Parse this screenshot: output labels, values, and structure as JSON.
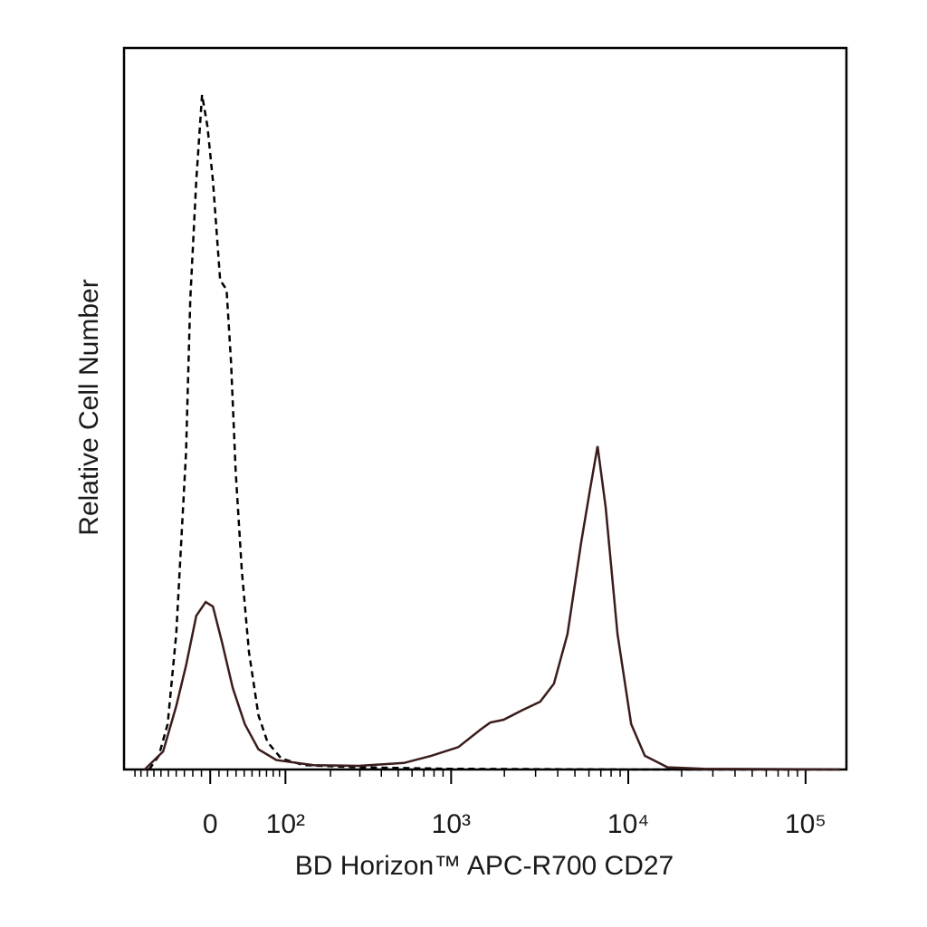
{
  "chart_data": {
    "type": "line",
    "xlabel": "BD Horizon™ APC-R700 CD27",
    "ylabel": "Relative Cell Number",
    "xscale": "biexponential",
    "xlim": [
      -120,
      170000
    ],
    "ylim": [
      0,
      100
    ],
    "xticks": [
      0,
      {
        "value": 100,
        "label": "10²"
      },
      {
        "value": 1000,
        "label": "10³"
      },
      {
        "value": 10000,
        "label": "10⁴"
      },
      {
        "value": 100000,
        "label": "10⁵"
      }
    ],
    "xminorticks": [
      -100,
      -90,
      -80,
      -70,
      -60,
      -50,
      -40,
      -30,
      -20,
      -10,
      10,
      20,
      30,
      40,
      50,
      60,
      70,
      80,
      90,
      200,
      300,
      400,
      500,
      600,
      700,
      800,
      900,
      2000,
      3000,
      4000,
      5000,
      6000,
      7000,
      8000,
      9000,
      20000,
      30000,
      40000,
      50000,
      60000,
      70000,
      80000,
      90000
    ],
    "series": [
      {
        "color": "#000000",
        "dash": true,
        "x": [
          -77,
          -63,
          -51,
          -40,
          -28,
          -23,
          -16,
          -9.3,
          -3.1,
          3.1,
          11.4,
          18.8,
          24,
          29.5,
          37,
          46,
          58.6,
          71.5,
          93,
          135,
          295,
          975,
          10390,
          156500
        ],
        "values": [
          0,
          1.9,
          6.3,
          18.8,
          43.9,
          65.2,
          81.6,
          93.5,
          89.1,
          81.6,
          67.8,
          66.5,
          56.5,
          41.4,
          27.6,
          16.3,
          7.5,
          3.8,
          1.5,
          0.6,
          0.3,
          0.1,
          0,
          0
        ]
      },
      {
        "color": "#3b1c1c",
        "dash": false,
        "x": [
          -84,
          -57,
          -40,
          -28,
          -16,
          -5.2,
          3.1,
          13.5,
          26,
          40.7,
          58.6,
          85,
          156,
          295,
          539,
          771,
          1099,
          1479,
          1664,
          1983,
          2516,
          3185,
          3806,
          4543,
          5420,
          6095,
          6709,
          7454,
          8691,
          10375,
          12392,
          16663,
          26660,
          156500
        ],
        "values": [
          0,
          2.5,
          8.8,
          14.4,
          21.3,
          23.2,
          22.6,
          17.6,
          11.3,
          6.3,
          2.8,
          1.3,
          0.6,
          0.5,
          0.9,
          1.9,
          3.1,
          5.6,
          6.5,
          6.9,
          8.2,
          9.4,
          11.9,
          18.8,
          31.4,
          38.9,
          44.8,
          36.4,
          18.8,
          6.3,
          1.9,
          0.3,
          0.1,
          0
        ]
      }
    ]
  }
}
